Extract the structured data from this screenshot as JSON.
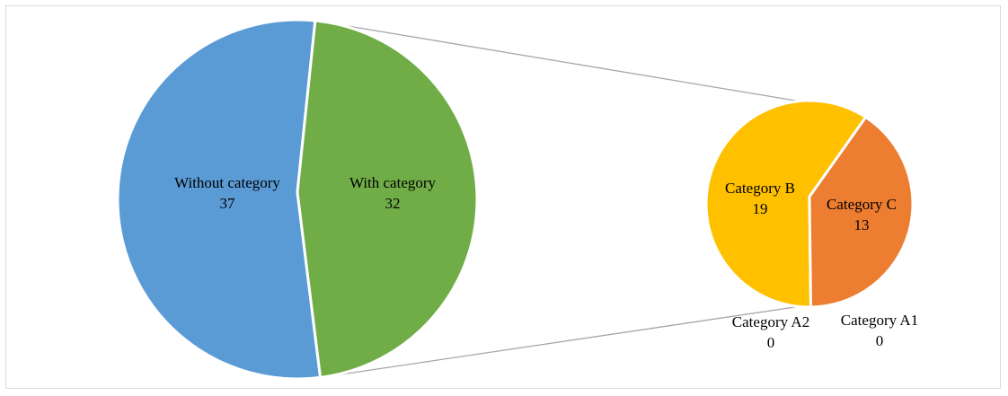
{
  "chart_data": {
    "type": "pie-of-pie",
    "main_pie": {
      "slices": [
        {
          "label": "Without category",
          "value": 37,
          "color": "#5b9bd5"
        },
        {
          "label": "With category",
          "value": 32,
          "color": "#70ad47"
        }
      ]
    },
    "secondary_pie": {
      "slices": [
        {
          "label": "Category B",
          "value": 19,
          "color": "#ffc000"
        },
        {
          "label": "Category C",
          "value": 13,
          "color": "#ed7d31"
        },
        {
          "label": "Category A1",
          "value": 0,
          "color": "#a5a5a5"
        },
        {
          "label": "Category A2",
          "value": 0,
          "color": "#4472c4"
        }
      ]
    },
    "title": "",
    "legend": "none",
    "connector_color": "#a6a6a6"
  }
}
